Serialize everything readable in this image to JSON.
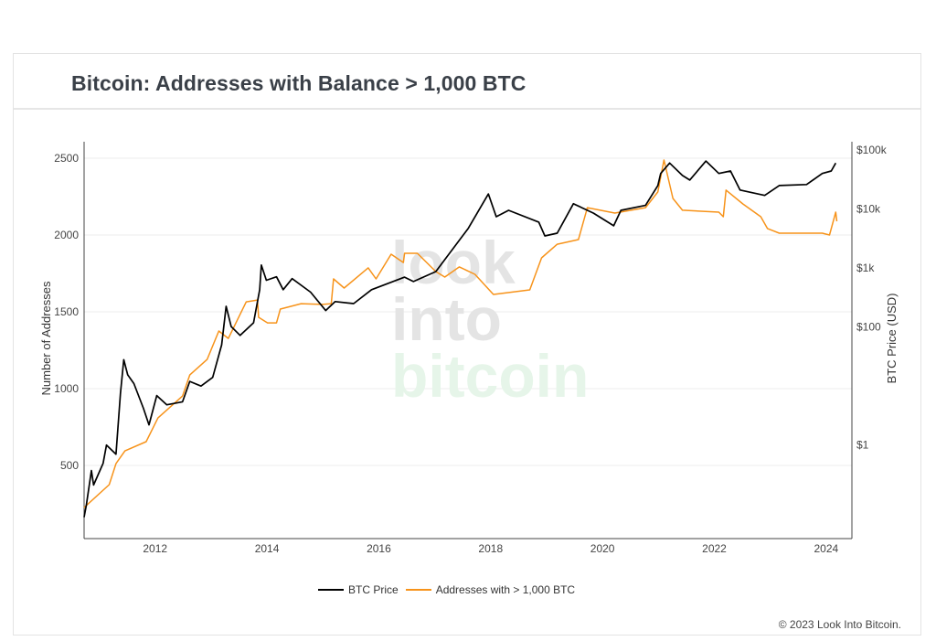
{
  "header": {
    "title": "Bitcoin: Addresses with Balance > 1,000 BTC"
  },
  "footer": {
    "copyright": "© 2023 Look Into Bitcoin."
  },
  "watermark": {
    "lines": [
      "look",
      "into",
      "bitcoin"
    ],
    "colors": [
      "#e4e4e4",
      "#e4e4e4",
      "#e6f5e9"
    ]
  },
  "chart_data": {
    "type": "line",
    "title": "Bitcoin: Addresses with Balance > 1,000 BTC",
    "xlabel": "",
    "ylabel": "Number of Addresses",
    "y2label": "BTC Price (USD)",
    "xlim": [
      2010.73,
      2024.46
    ],
    "ylim": [
      24,
      2607
    ],
    "y2_scale": "log",
    "y2lim": [
      0.026,
      138000
    ],
    "grid": true,
    "legend_placement": "bottom",
    "x_ticks": [
      2012,
      2014,
      2016,
      2018,
      2020,
      2022,
      2024
    ],
    "y_ticks": [
      500,
      1000,
      1500,
      2000,
      2500
    ],
    "y2_ticks": [
      {
        "value": 1,
        "label": "$1"
      },
      {
        "value": 100,
        "label": "$100"
      },
      {
        "value": 1000,
        "label": "$1k"
      },
      {
        "value": 10000,
        "label": "$10k"
      },
      {
        "value": 100000,
        "label": "$100k"
      }
    ],
    "series": [
      {
        "name": "BTC Price",
        "axis": "right",
        "color": "#000000",
        "x": [
          2010.73,
          2010.77,
          2010.86,
          2010.9,
          2011.07,
          2011.13,
          2011.3,
          2011.38,
          2011.44,
          2011.51,
          2011.62,
          2011.79,
          2011.89,
          2012.03,
          2012.21,
          2012.49,
          2012.62,
          2012.82,
          2013.03,
          2013.19,
          2013.27,
          2013.36,
          2013.52,
          2013.76,
          2013.87,
          2013.9,
          2013.99,
          2014.17,
          2014.29,
          2014.45,
          2014.78,
          2015.05,
          2015.22,
          2015.55,
          2015.87,
          2016.46,
          2016.62,
          2017.02,
          2017.44,
          2017.6,
          2017.96,
          2018.1,
          2018.32,
          2018.86,
          2018.97,
          2019.19,
          2019.48,
          2019.84,
          2020.2,
          2020.33,
          2020.77,
          2020.99,
          2021.04,
          2021.2,
          2021.43,
          2021.56,
          2021.85,
          2022.08,
          2022.29,
          2022.46,
          2022.9,
          2023.16,
          2023.65,
          2023.93,
          2024.09,
          2024.17
        ],
        "values": [
          0.06,
          0.095,
          0.37,
          0.21,
          0.49,
          1.0,
          0.7,
          7.6,
          28,
          15.5,
          11,
          4.2,
          2.2,
          6.9,
          4.8,
          5.4,
          12,
          10,
          14,
          50,
          224,
          102,
          72,
          118,
          430,
          1120,
          620,
          710,
          430,
          660,
          390,
          190,
          270,
          250,
          430,
          700,
          590,
          870,
          2950,
          4700,
          18000,
          7400,
          9500,
          6000,
          3500,
          3900,
          12300,
          8500,
          5200,
          9500,
          11500,
          25000,
          40000,
          60000,
          37000,
          31000,
          65000,
          40000,
          44000,
          21000,
          17000,
          25000,
          26000,
          40000,
          44000,
          60000
        ]
      },
      {
        "name": "Addresses with > 1,000 BTC",
        "axis": "left",
        "color": "#f7931a",
        "x": [
          2010.73,
          2011.18,
          2011.3,
          2011.46,
          2011.84,
          2012.05,
          2012.49,
          2012.62,
          2012.93,
          2013.14,
          2013.31,
          2013.47,
          2013.63,
          2013.83,
          2013.85,
          2014.01,
          2014.17,
          2014.24,
          2014.61,
          2014.99,
          2015.15,
          2015.19,
          2015.38,
          2015.81,
          2015.95,
          2016.22,
          2016.44,
          2016.46,
          2016.69,
          2017.02,
          2017.18,
          2017.44,
          2017.72,
          2018.05,
          2018.7,
          2018.91,
          2019.19,
          2019.57,
          2019.73,
          2020.22,
          2020.77,
          2020.99,
          2021.1,
          2021.26,
          2021.43,
          2022.08,
          2022.16,
          2022.21,
          2022.51,
          2022.83,
          2022.95,
          2023.16,
          2023.93,
          2024.06,
          2024.17,
          2024.19
        ],
        "values": [
          226,
          375,
          512,
          595,
          655,
          809,
          952,
          1089,
          1190,
          1375,
          1327,
          1446,
          1565,
          1577,
          1464,
          1428,
          1428,
          1518,
          1553,
          1548,
          1553,
          1714,
          1655,
          1786,
          1714,
          1875,
          1821,
          1881,
          1881,
          1762,
          1726,
          1792,
          1744,
          1613,
          1643,
          1851,
          1940,
          1970,
          2178,
          2143,
          2178,
          2280,
          2488,
          2238,
          2161,
          2149,
          2119,
          2292,
          2202,
          2119,
          2042,
          2012,
          2012,
          2000,
          2149,
          2089
        ]
      }
    ]
  }
}
